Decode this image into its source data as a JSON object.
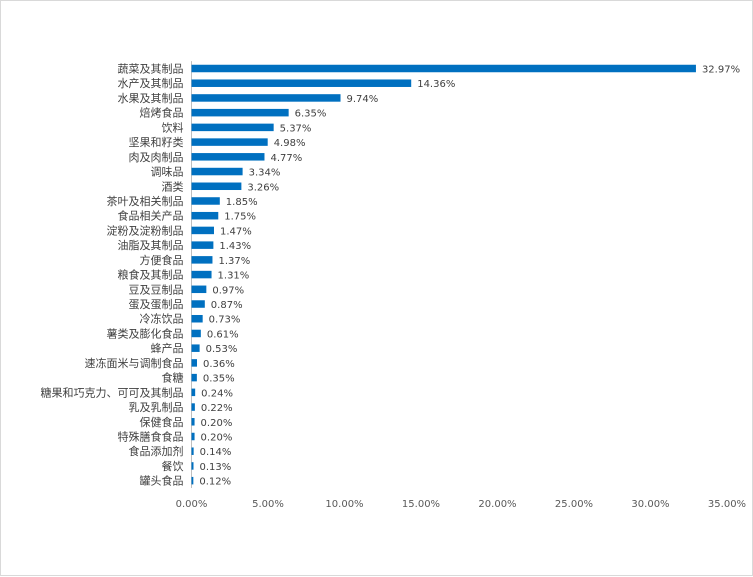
{
  "chart_data": {
    "type": "bar",
    "orientation": "horizontal",
    "title": "",
    "xlabel": "",
    "ylabel": "",
    "xlim": [
      0,
      35
    ],
    "grid": false,
    "legend": "none",
    "bar_color": "#0070C0",
    "categories": [
      "蔬菜及其制品",
      "水产及其制品",
      "水果及其制品",
      "焙烤食品",
      "饮料",
      "坚果和籽类",
      "肉及肉制品",
      "调味品",
      "酒类",
      "茶叶及相关制品",
      "食品相关产品",
      "淀粉及淀粉制品",
      "油脂及其制品",
      "方便食品",
      "粮食及其制品",
      "豆及豆制品",
      "蛋及蛋制品",
      "冷冻饮品",
      "薯类及膨化食品",
      "蜂产品",
      "速冻面米与调制食品",
      "食糖",
      "糖果和巧克力、可可及其制品",
      "乳及乳制品",
      "保健食品",
      "特殊膳食食品",
      "食品添加剂",
      "餐饮",
      "罐头食品"
    ],
    "values": [
      32.97,
      14.36,
      9.74,
      6.35,
      5.37,
      4.98,
      4.77,
      3.34,
      3.26,
      1.85,
      1.75,
      1.47,
      1.43,
      1.37,
      1.31,
      0.97,
      0.87,
      0.73,
      0.61,
      0.53,
      0.36,
      0.35,
      0.24,
      0.22,
      0.2,
      0.2,
      0.14,
      0.13,
      0.12
    ],
    "value_labels": [
      "32.97%",
      "14.36%",
      "9.74%",
      "6.35%",
      "5.37%",
      "4.98%",
      "4.77%",
      "3.34%",
      "3.26%",
      "1.85%",
      "1.75%",
      "1.47%",
      "1.43%",
      "1.37%",
      "1.31%",
      "0.97%",
      "0.87%",
      "0.73%",
      "0.61%",
      "0.53%",
      "0.36%",
      "0.35%",
      "0.24%",
      "0.22%",
      "0.20%",
      "0.20%",
      "0.14%",
      "0.13%",
      "0.12%"
    ],
    "x_ticks": [
      0,
      5,
      10,
      15,
      20,
      25,
      30,
      35
    ],
    "x_tick_labels": [
      "0.00%",
      "5.00%",
      "10.00%",
      "15.00%",
      "20.00%",
      "25.00%",
      "30.00%",
      "35.00%"
    ]
  }
}
